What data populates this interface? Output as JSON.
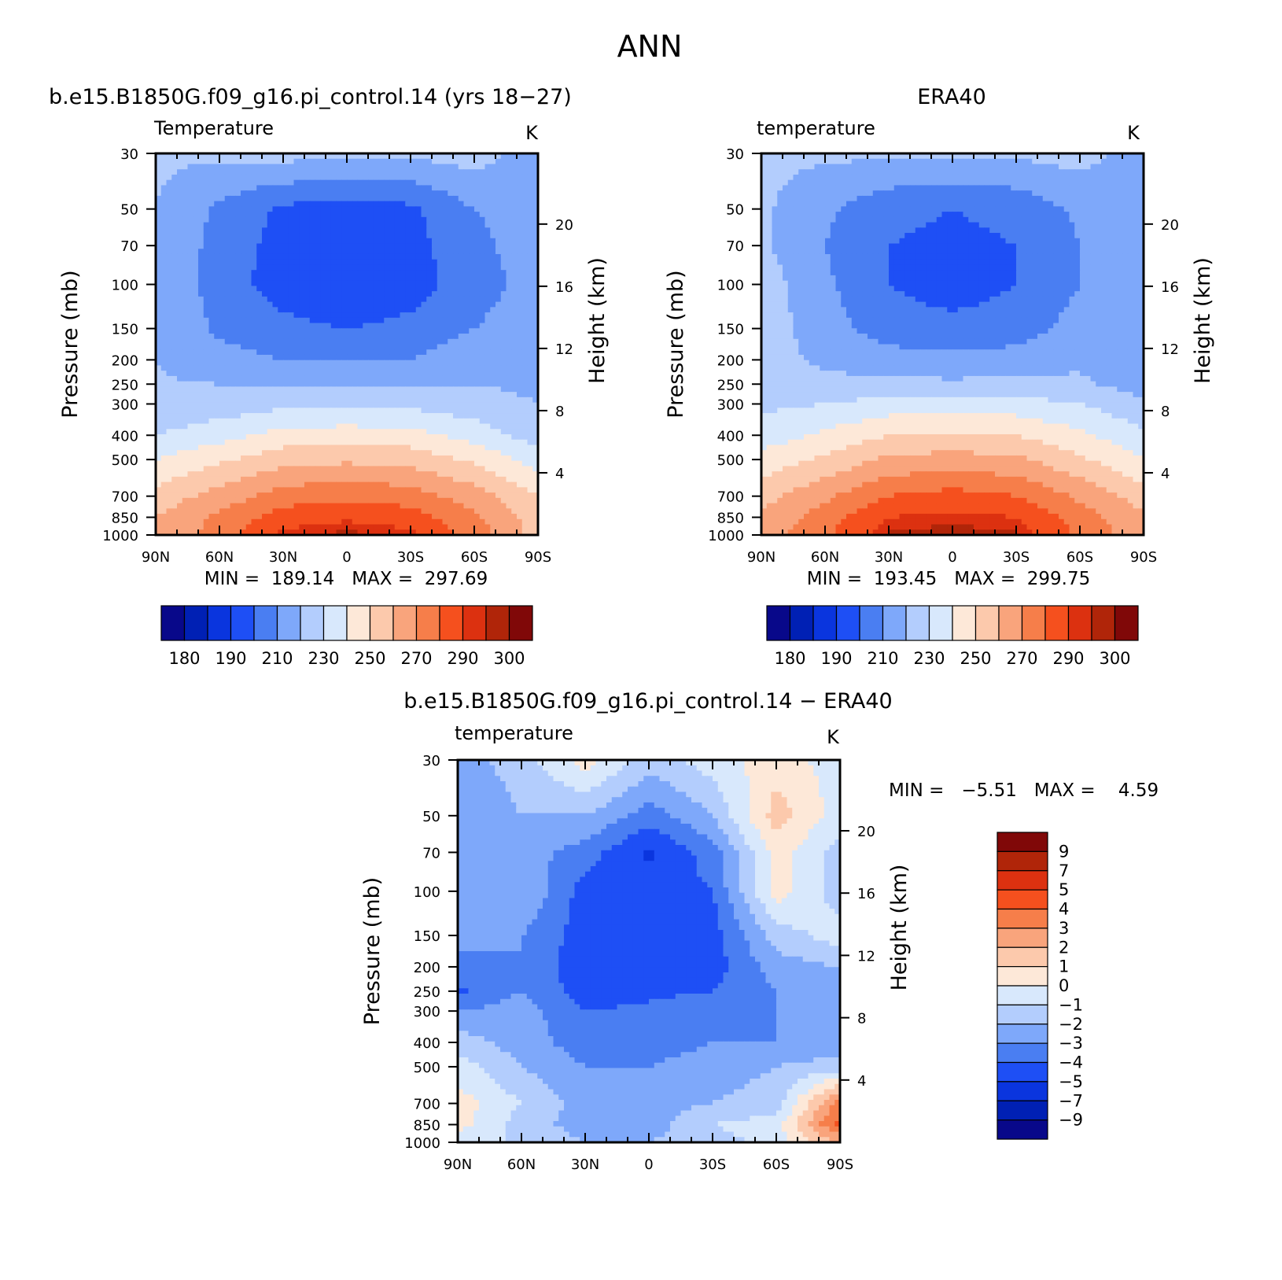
{
  "figure": {
    "title": "ANN"
  },
  "panels": [
    {
      "id": "model",
      "header": "b.e15.B1850G.f09_g16.pi_control.14 (yrs 18−27)",
      "variable": "Temperature",
      "units": "K",
      "stats": "MIN =  189.14   MAX =  297.69"
    },
    {
      "id": "obs",
      "header": "ERA40",
      "variable": "temperature",
      "units": "K",
      "stats": "MIN =  193.45   MAX =  299.75"
    },
    {
      "id": "diff",
      "header": "b.e15.B1850G.f09_g16.pi_control.14 − ERA40",
      "variable": "temperature",
      "units": "K",
      "stats": "MIN =   −5.51   MAX =    4.59"
    }
  ],
  "axes": {
    "ylabel_left": "Pressure (mb)",
    "ylabel_right": "Height (km)",
    "pressure_ticks": [
      "30",
      "50",
      "70",
      "100",
      "150",
      "200",
      "250",
      "300",
      "400",
      "500",
      "700",
      "850",
      "1000"
    ],
    "height_ticks": [
      "20",
      "16",
      "12",
      "8",
      "4"
    ],
    "lat_ticks": [
      "90N",
      "60N",
      "30N",
      "0",
      "30S",
      "60S",
      "90S"
    ]
  },
  "colorbar_abs": {
    "colors": [
      "#08088a",
      "#0020b4",
      "#0a35de",
      "#1e4ff5",
      "#4a7ef2",
      "#7ea8fa",
      "#b3cdfd",
      "#d8e8fc",
      "#fde8d8",
      "#fcc9ac",
      "#f9a47c",
      "#f67e4a",
      "#f5501e",
      "#dc3110",
      "#b02509",
      "#800808"
    ],
    "labels": [
      "180",
      "190",
      "210",
      "230",
      "250",
      "270",
      "290",
      "300"
    ]
  },
  "colorbar_diff": {
    "colors": [
      "#800808",
      "#b02509",
      "#dc3110",
      "#f5501e",
      "#f67e4a",
      "#f9a47c",
      "#fcc9ac",
      "#fde8d8",
      "#d8e8fc",
      "#b3cdfd",
      "#7ea8fa",
      "#4a7ef2",
      "#1e4ff5",
      "#0a35de",
      "#0020b4",
      "#08088a"
    ],
    "labels": [
      "9",
      "7",
      "5",
      "4",
      "3",
      "2",
      "1",
      "0",
      "−1",
      "−2",
      "−3",
      "−4",
      "−5",
      "−7",
      "−9"
    ]
  },
  "chart_data": [
    {
      "type": "heatmap",
      "title": "b.e15.B1850G.f09_g16.pi_control.14 (yrs 18−27)",
      "subtitle": "Temperature",
      "units": "K",
      "x": [
        "90N",
        "60N",
        "30N",
        "0",
        "30S",
        "60S",
        "90S"
      ],
      "y": [
        30,
        50,
        70,
        100,
        150,
        200,
        250,
        300,
        400,
        500,
        700,
        850,
        1000
      ],
      "xlim": [
        90,
        -90
      ],
      "ylim": [
        1000,
        30
      ],
      "y_scale": "log",
      "ylabel": "Pressure (mb)",
      "y2label": "Height (km)",
      "min": 189.14,
      "max": 297.69,
      "levels": [
        180,
        185,
        190,
        200,
        210,
        220,
        230,
        240,
        250,
        260,
        270,
        280,
        290,
        295,
        300
      ],
      "values": [
        [
          222,
          222,
          224,
          222,
          222,
          225,
          214
        ],
        [
          220,
          208,
          198,
          195,
          198,
          210,
          214
        ],
        [
          220,
          206,
          196,
          193,
          196,
          208,
          214
        ],
        [
          220,
          205,
          195,
          190,
          195,
          206,
          214
        ],
        [
          220,
          208,
          203,
          200,
          203,
          210,
          215
        ],
        [
          220,
          214,
          210,
          210,
          210,
          216,
          215
        ],
        [
          221,
          220,
          218,
          218,
          218,
          220,
          218
        ],
        [
          222,
          224,
          227,
          228,
          227,
          224,
          220
        ],
        [
          230,
          236,
          244,
          245,
          244,
          236,
          225
        ],
        [
          240,
          248,
          256,
          258,
          256,
          248,
          235
        ],
        [
          254,
          264,
          275,
          278,
          275,
          265,
          250
        ],
        [
          260,
          272,
          285,
          288,
          285,
          272,
          255
        ],
        [
          262,
          275,
          292,
          297,
          292,
          276,
          256
        ]
      ]
    },
    {
      "type": "heatmap",
      "title": "ERA40",
      "subtitle": "temperature",
      "units": "K",
      "x": [
        "90N",
        "60N",
        "30N",
        "0",
        "30S",
        "60S",
        "90S"
      ],
      "y": [
        30,
        50,
        70,
        100,
        150,
        200,
        250,
        300,
        400,
        500,
        700,
        850,
        1000
      ],
      "xlim": [
        90,
        -90
      ],
      "ylim": [
        1000,
        30
      ],
      "y_scale": "log",
      "ylabel": "Pressure (mb)",
      "y2label": "Height (km)",
      "min": 193.45,
      "max": 299.75,
      "levels": [
        180,
        185,
        190,
        200,
        210,
        220,
        230,
        240,
        250,
        260,
        270,
        280,
        290,
        295,
        300
      ],
      "values": [
        [
          222,
          222,
          222,
          222,
          222,
          224,
          215
        ],
        [
          222,
          212,
          203,
          200,
          203,
          212,
          214
        ],
        [
          222,
          210,
          200,
          197,
          200,
          210,
          214
        ],
        [
          225,
          212,
          200,
          195,
          200,
          210,
          213
        ],
        [
          226,
          214,
          205,
          203,
          205,
          214,
          213
        ],
        [
          224,
          218,
          214,
          213,
          214,
          218,
          212
        ],
        [
          225,
          223,
          222,
          222,
          222,
          222,
          215
        ],
        [
          228,
          230,
          234,
          235,
          234,
          230,
          222
        ],
        [
          234,
          242,
          250,
          252,
          250,
          242,
          232
        ],
        [
          244,
          252,
          262,
          264,
          262,
          252,
          240
        ],
        [
          256,
          268,
          280,
          284,
          280,
          268,
          255
        ],
        [
          262,
          275,
          290,
          292,
          290,
          275,
          262
        ],
        [
          264,
          278,
          296,
          299,
          296,
          278,
          263
        ]
      ]
    },
    {
      "type": "heatmap",
      "title": "b.e15.B1850G.f09_g16.pi_control.14 − ERA40",
      "subtitle": "temperature",
      "units": "K",
      "x": [
        "90N",
        "60N",
        "30N",
        "0",
        "30S",
        "60S",
        "90S"
      ],
      "y": [
        30,
        50,
        70,
        100,
        150,
        200,
        250,
        300,
        400,
        500,
        700,
        850,
        1000
      ],
      "xlim": [
        90,
        -90
      ],
      "ylim": [
        1000,
        30
      ],
      "y_scale": "log",
      "ylabel": "Pressure (mb)",
      "y2label": "Height (km)",
      "min": -5.51,
      "max": 4.59,
      "levels": [
        -9,
        -7,
        -5,
        -4,
        -3,
        -2,
        -1,
        0,
        1,
        2,
        3,
        4,
        5,
        7,
        9
      ],
      "values": [
        [
          -2.5,
          -1.5,
          0.5,
          -1.5,
          -0.5,
          0.5,
          -0.5
        ],
        [
          -3.0,
          -2.0,
          -2.0,
          -3.5,
          -2.0,
          1.5,
          -0.5
        ],
        [
          -3.0,
          -2.5,
          -3.5,
          -5.2,
          -3.5,
          0.5,
          -1.5
        ],
        [
          -2.5,
          -2.0,
          -4.5,
          -4.5,
          -4.0,
          0.5,
          -1.5
        ],
        [
          -2.5,
          -3.0,
          -4.5,
          -4.2,
          -4.5,
          -1.5,
          -0.5
        ],
        [
          -3.5,
          -3.0,
          -4.8,
          -4.5,
          -4.5,
          -2.5,
          -2.0
        ],
        [
          -4.2,
          -3.0,
          -4.5,
          -4.2,
          -4.0,
          -3.0,
          -2.5
        ],
        [
          -3.0,
          -2.5,
          -4.0,
          -3.8,
          -3.5,
          -3.0,
          -3.0
        ],
        [
          -1.5,
          -2.5,
          -3.5,
          -3.5,
          -3.0,
          -3.0,
          -2.5
        ],
        [
          -0.5,
          -2.0,
          -3.0,
          -3.0,
          -2.5,
          -2.0,
          -1.5
        ],
        [
          0.5,
          -1.0,
          -2.5,
          -2.5,
          -2.0,
          -1.5,
          3.5
        ],
        [
          0.5,
          -1.5,
          -2.5,
          -2.5,
          -1.0,
          -0.5,
          4.5
        ],
        [
          -1.0,
          -1.0,
          -2.0,
          -2.0,
          -1.5,
          -0.5,
          2.0
        ]
      ]
    }
  ]
}
